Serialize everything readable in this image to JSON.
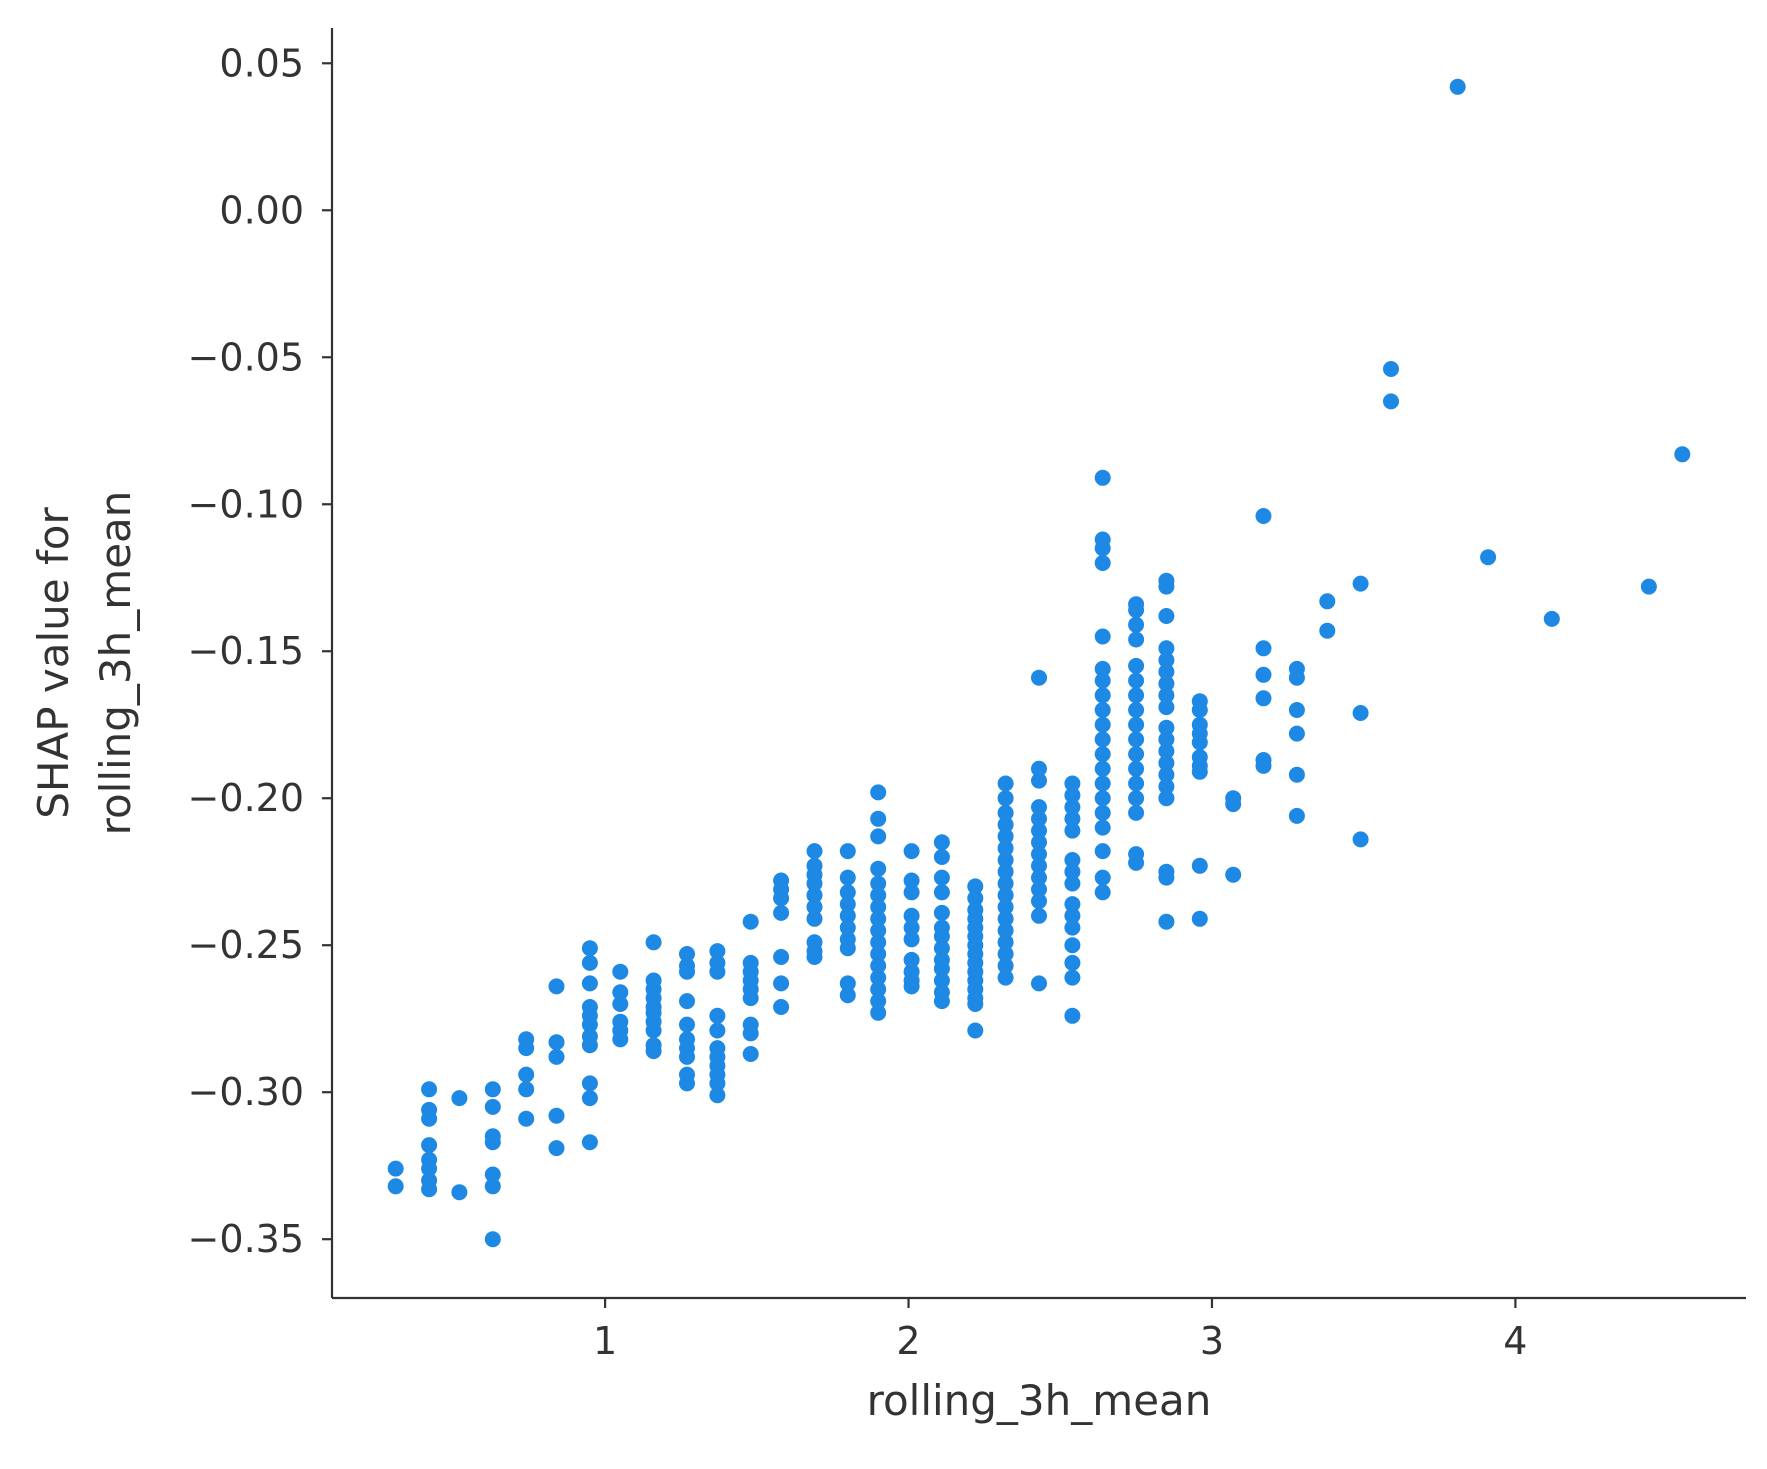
{
  "chart_data": {
    "type": "scatter",
    "title": "",
    "xlabel": "rolling_3h_mean",
    "ylabel_lines": [
      "SHAP value for",
      "rolling_3h_mean"
    ],
    "xlim": [
      0.1,
      4.76
    ],
    "ylim": [
      -0.37,
      0.062
    ],
    "xticks": [
      1,
      2,
      3,
      4
    ],
    "xtick_labels": [
      "1",
      "2",
      "3",
      "4"
    ],
    "yticks": [
      0.05,
      0.0,
      -0.05,
      -0.1,
      -0.15,
      -0.2,
      -0.25,
      -0.3,
      -0.35
    ],
    "ytick_labels": [
      "0.05",
      "0.00",
      "−0.05",
      "−0.10",
      "−0.15",
      "−0.20",
      "−0.25",
      "−0.30",
      "−0.35"
    ],
    "grid": false,
    "point_color": "#1e88e5",
    "points": [
      [
        0.31,
        -0.326
      ],
      [
        0.31,
        -0.332
      ],
      [
        0.42,
        -0.299
      ],
      [
        0.42,
        -0.306
      ],
      [
        0.42,
        -0.309
      ],
      [
        0.42,
        -0.318
      ],
      [
        0.42,
        -0.323
      ],
      [
        0.42,
        -0.326
      ],
      [
        0.42,
        -0.33
      ],
      [
        0.42,
        -0.333
      ],
      [
        0.52,
        -0.302
      ],
      [
        0.52,
        -0.334
      ],
      [
        0.63,
        -0.299
      ],
      [
        0.63,
        -0.305
      ],
      [
        0.63,
        -0.315
      ],
      [
        0.63,
        -0.317
      ],
      [
        0.63,
        -0.328
      ],
      [
        0.63,
        -0.332
      ],
      [
        0.63,
        -0.35
      ],
      [
        0.74,
        -0.282
      ],
      [
        0.74,
        -0.285
      ],
      [
        0.74,
        -0.294
      ],
      [
        0.74,
        -0.299
      ],
      [
        0.74,
        -0.309
      ],
      [
        0.84,
        -0.264
      ],
      [
        0.84,
        -0.283
      ],
      [
        0.84,
        -0.288
      ],
      [
        0.84,
        -0.308
      ],
      [
        0.84,
        -0.319
      ],
      [
        0.95,
        -0.251
      ],
      [
        0.95,
        -0.256
      ],
      [
        0.95,
        -0.263
      ],
      [
        0.95,
        -0.271
      ],
      [
        0.95,
        -0.274
      ],
      [
        0.95,
        -0.277
      ],
      [
        0.95,
        -0.281
      ],
      [
        0.95,
        -0.284
      ],
      [
        0.95,
        -0.297
      ],
      [
        0.95,
        -0.302
      ],
      [
        0.95,
        -0.317
      ],
      [
        1.05,
        -0.259
      ],
      [
        1.05,
        -0.266
      ],
      [
        1.05,
        -0.27
      ],
      [
        1.05,
        -0.276
      ],
      [
        1.05,
        -0.279
      ],
      [
        1.05,
        -0.282
      ],
      [
        1.16,
        -0.249
      ],
      [
        1.16,
        -0.262
      ],
      [
        1.16,
        -0.265
      ],
      [
        1.16,
        -0.268
      ],
      [
        1.16,
        -0.271
      ],
      [
        1.16,
        -0.273
      ],
      [
        1.16,
        -0.276
      ],
      [
        1.16,
        -0.279
      ],
      [
        1.16,
        -0.284
      ],
      [
        1.16,
        -0.286
      ],
      [
        1.27,
        -0.253
      ],
      [
        1.27,
        -0.257
      ],
      [
        1.27,
        -0.259
      ],
      [
        1.27,
        -0.269
      ],
      [
        1.27,
        -0.277
      ],
      [
        1.27,
        -0.282
      ],
      [
        1.27,
        -0.285
      ],
      [
        1.27,
        -0.288
      ],
      [
        1.27,
        -0.294
      ],
      [
        1.27,
        -0.297
      ],
      [
        1.37,
        -0.252
      ],
      [
        1.37,
        -0.256
      ],
      [
        1.37,
        -0.259
      ],
      [
        1.37,
        -0.274
      ],
      [
        1.37,
        -0.279
      ],
      [
        1.37,
        -0.285
      ],
      [
        1.37,
        -0.288
      ],
      [
        1.37,
        -0.291
      ],
      [
        1.37,
        -0.294
      ],
      [
        1.37,
        -0.297
      ],
      [
        1.37,
        -0.301
      ],
      [
        1.48,
        -0.242
      ],
      [
        1.48,
        -0.256
      ],
      [
        1.48,
        -0.259
      ],
      [
        1.48,
        -0.262
      ],
      [
        1.48,
        -0.265
      ],
      [
        1.48,
        -0.268
      ],
      [
        1.48,
        -0.277
      ],
      [
        1.48,
        -0.28
      ],
      [
        1.48,
        -0.287
      ],
      [
        1.58,
        -0.228
      ],
      [
        1.58,
        -0.231
      ],
      [
        1.58,
        -0.234
      ],
      [
        1.58,
        -0.239
      ],
      [
        1.58,
        -0.254
      ],
      [
        1.58,
        -0.263
      ],
      [
        1.58,
        -0.271
      ],
      [
        1.69,
        -0.218
      ],
      [
        1.69,
        -0.223
      ],
      [
        1.69,
        -0.226
      ],
      [
        1.69,
        -0.229
      ],
      [
        1.69,
        -0.233
      ],
      [
        1.69,
        -0.237
      ],
      [
        1.69,
        -0.241
      ],
      [
        1.69,
        -0.249
      ],
      [
        1.69,
        -0.252
      ],
      [
        1.69,
        -0.254
      ],
      [
        1.8,
        -0.218
      ],
      [
        1.8,
        -0.227
      ],
      [
        1.8,
        -0.232
      ],
      [
        1.8,
        -0.236
      ],
      [
        1.8,
        -0.24
      ],
      [
        1.8,
        -0.244
      ],
      [
        1.8,
        -0.248
      ],
      [
        1.8,
        -0.251
      ],
      [
        1.8,
        -0.263
      ],
      [
        1.8,
        -0.267
      ],
      [
        1.9,
        -0.198
      ],
      [
        1.9,
        -0.207
      ],
      [
        1.9,
        -0.213
      ],
      [
        1.9,
        -0.224
      ],
      [
        1.9,
        -0.229
      ],
      [
        1.9,
        -0.233
      ],
      [
        1.9,
        -0.237
      ],
      [
        1.9,
        -0.241
      ],
      [
        1.9,
        -0.245
      ],
      [
        1.9,
        -0.249
      ],
      [
        1.9,
        -0.253
      ],
      [
        1.9,
        -0.257
      ],
      [
        1.9,
        -0.261
      ],
      [
        1.9,
        -0.265
      ],
      [
        1.9,
        -0.269
      ],
      [
        1.9,
        -0.273
      ],
      [
        2.01,
        -0.218
      ],
      [
        2.01,
        -0.228
      ],
      [
        2.01,
        -0.232
      ],
      [
        2.01,
        -0.24
      ],
      [
        2.01,
        -0.244
      ],
      [
        2.01,
        -0.248
      ],
      [
        2.01,
        -0.255
      ],
      [
        2.01,
        -0.259
      ],
      [
        2.01,
        -0.262
      ],
      [
        2.01,
        -0.264
      ],
      [
        2.11,
        -0.215
      ],
      [
        2.11,
        -0.22
      ],
      [
        2.11,
        -0.227
      ],
      [
        2.11,
        -0.232
      ],
      [
        2.11,
        -0.239
      ],
      [
        2.11,
        -0.244
      ],
      [
        2.11,
        -0.247
      ],
      [
        2.11,
        -0.251
      ],
      [
        2.11,
        -0.255
      ],
      [
        2.11,
        -0.258
      ],
      [
        2.11,
        -0.262
      ],
      [
        2.11,
        -0.266
      ],
      [
        2.11,
        -0.269
      ],
      [
        2.22,
        -0.23
      ],
      [
        2.22,
        -0.234
      ],
      [
        2.22,
        -0.238
      ],
      [
        2.22,
        -0.241
      ],
      [
        2.22,
        -0.244
      ],
      [
        2.22,
        -0.247
      ],
      [
        2.22,
        -0.25
      ],
      [
        2.22,
        -0.253
      ],
      [
        2.22,
        -0.256
      ],
      [
        2.22,
        -0.259
      ],
      [
        2.22,
        -0.262
      ],
      [
        2.22,
        -0.265
      ],
      [
        2.22,
        -0.268
      ],
      [
        2.22,
        -0.27
      ],
      [
        2.22,
        -0.279
      ],
      [
        2.32,
        -0.195
      ],
      [
        2.32,
        -0.2
      ],
      [
        2.32,
        -0.205
      ],
      [
        2.32,
        -0.209
      ],
      [
        2.32,
        -0.213
      ],
      [
        2.32,
        -0.217
      ],
      [
        2.32,
        -0.221
      ],
      [
        2.32,
        -0.225
      ],
      [
        2.32,
        -0.229
      ],
      [
        2.32,
        -0.233
      ],
      [
        2.32,
        -0.237
      ],
      [
        2.32,
        -0.241
      ],
      [
        2.32,
        -0.245
      ],
      [
        2.32,
        -0.249
      ],
      [
        2.32,
        -0.253
      ],
      [
        2.32,
        -0.257
      ],
      [
        2.32,
        -0.261
      ],
      [
        2.43,
        -0.159
      ],
      [
        2.43,
        -0.19
      ],
      [
        2.43,
        -0.194
      ],
      [
        2.43,
        -0.203
      ],
      [
        2.43,
        -0.207
      ],
      [
        2.43,
        -0.211
      ],
      [
        2.43,
        -0.215
      ],
      [
        2.43,
        -0.219
      ],
      [
        2.43,
        -0.223
      ],
      [
        2.43,
        -0.227
      ],
      [
        2.43,
        -0.231
      ],
      [
        2.43,
        -0.235
      ],
      [
        2.43,
        -0.24
      ],
      [
        2.43,
        -0.263
      ],
      [
        2.54,
        -0.195
      ],
      [
        2.54,
        -0.199
      ],
      [
        2.54,
        -0.203
      ],
      [
        2.54,
        -0.207
      ],
      [
        2.54,
        -0.211
      ],
      [
        2.54,
        -0.221
      ],
      [
        2.54,
        -0.225
      ],
      [
        2.54,
        -0.229
      ],
      [
        2.54,
        -0.236
      ],
      [
        2.54,
        -0.24
      ],
      [
        2.54,
        -0.244
      ],
      [
        2.54,
        -0.25
      ],
      [
        2.54,
        -0.256
      ],
      [
        2.54,
        -0.261
      ],
      [
        2.54,
        -0.274
      ],
      [
        2.64,
        -0.091
      ],
      [
        2.64,
        -0.112
      ],
      [
        2.64,
        -0.115
      ],
      [
        2.64,
        -0.12
      ],
      [
        2.64,
        -0.145
      ],
      [
        2.64,
        -0.156
      ],
      [
        2.64,
        -0.16
      ],
      [
        2.64,
        -0.165
      ],
      [
        2.64,
        -0.17
      ],
      [
        2.64,
        -0.175
      ],
      [
        2.64,
        -0.18
      ],
      [
        2.64,
        -0.185
      ],
      [
        2.64,
        -0.19
      ],
      [
        2.64,
        -0.195
      ],
      [
        2.64,
        -0.2
      ],
      [
        2.64,
        -0.205
      ],
      [
        2.64,
        -0.21
      ],
      [
        2.64,
        -0.218
      ],
      [
        2.64,
        -0.227
      ],
      [
        2.64,
        -0.232
      ],
      [
        2.75,
        -0.134
      ],
      [
        2.75,
        -0.136
      ],
      [
        2.75,
        -0.141
      ],
      [
        2.75,
        -0.146
      ],
      [
        2.75,
        -0.155
      ],
      [
        2.75,
        -0.16
      ],
      [
        2.75,
        -0.165
      ],
      [
        2.75,
        -0.17
      ],
      [
        2.75,
        -0.175
      ],
      [
        2.75,
        -0.18
      ],
      [
        2.75,
        -0.185
      ],
      [
        2.75,
        -0.19
      ],
      [
        2.75,
        -0.195
      ],
      [
        2.75,
        -0.2
      ],
      [
        2.75,
        -0.205
      ],
      [
        2.75,
        -0.219
      ],
      [
        2.75,
        -0.222
      ],
      [
        2.85,
        -0.126
      ],
      [
        2.85,
        -0.128
      ],
      [
        2.85,
        -0.138
      ],
      [
        2.85,
        -0.149
      ],
      [
        2.85,
        -0.153
      ],
      [
        2.85,
        -0.157
      ],
      [
        2.85,
        -0.161
      ],
      [
        2.85,
        -0.165
      ],
      [
        2.85,
        -0.169
      ],
      [
        2.85,
        -0.176
      ],
      [
        2.85,
        -0.18
      ],
      [
        2.85,
        -0.184
      ],
      [
        2.85,
        -0.188
      ],
      [
        2.85,
        -0.192
      ],
      [
        2.85,
        -0.196
      ],
      [
        2.85,
        -0.2
      ],
      [
        2.85,
        -0.225
      ],
      [
        2.85,
        -0.227
      ],
      [
        2.85,
        -0.242
      ],
      [
        2.96,
        -0.167
      ],
      [
        2.96,
        -0.17
      ],
      [
        2.96,
        -0.175
      ],
      [
        2.96,
        -0.178
      ],
      [
        2.96,
        -0.181
      ],
      [
        2.96,
        -0.186
      ],
      [
        2.96,
        -0.189
      ],
      [
        2.96,
        -0.191
      ],
      [
        2.96,
        -0.223
      ],
      [
        2.96,
        -0.241
      ],
      [
        3.07,
        -0.2
      ],
      [
        3.07,
        -0.202
      ],
      [
        3.07,
        -0.226
      ],
      [
        3.17,
        -0.104
      ],
      [
        3.17,
        -0.149
      ],
      [
        3.17,
        -0.158
      ],
      [
        3.17,
        -0.166
      ],
      [
        3.17,
        -0.187
      ],
      [
        3.17,
        -0.189
      ],
      [
        3.28,
        -0.156
      ],
      [
        3.28,
        -0.159
      ],
      [
        3.28,
        -0.17
      ],
      [
        3.28,
        -0.178
      ],
      [
        3.28,
        -0.192
      ],
      [
        3.28,
        -0.206
      ],
      [
        3.38,
        -0.133
      ],
      [
        3.38,
        -0.143
      ],
      [
        3.49,
        -0.127
      ],
      [
        3.49,
        -0.171
      ],
      [
        3.49,
        -0.214
      ],
      [
        3.59,
        -0.054
      ],
      [
        3.59,
        -0.065
      ],
      [
        3.81,
        0.042
      ],
      [
        3.91,
        -0.118
      ],
      [
        4.12,
        -0.139
      ],
      [
        4.44,
        -0.128
      ],
      [
        4.55,
        -0.083
      ]
    ]
  }
}
